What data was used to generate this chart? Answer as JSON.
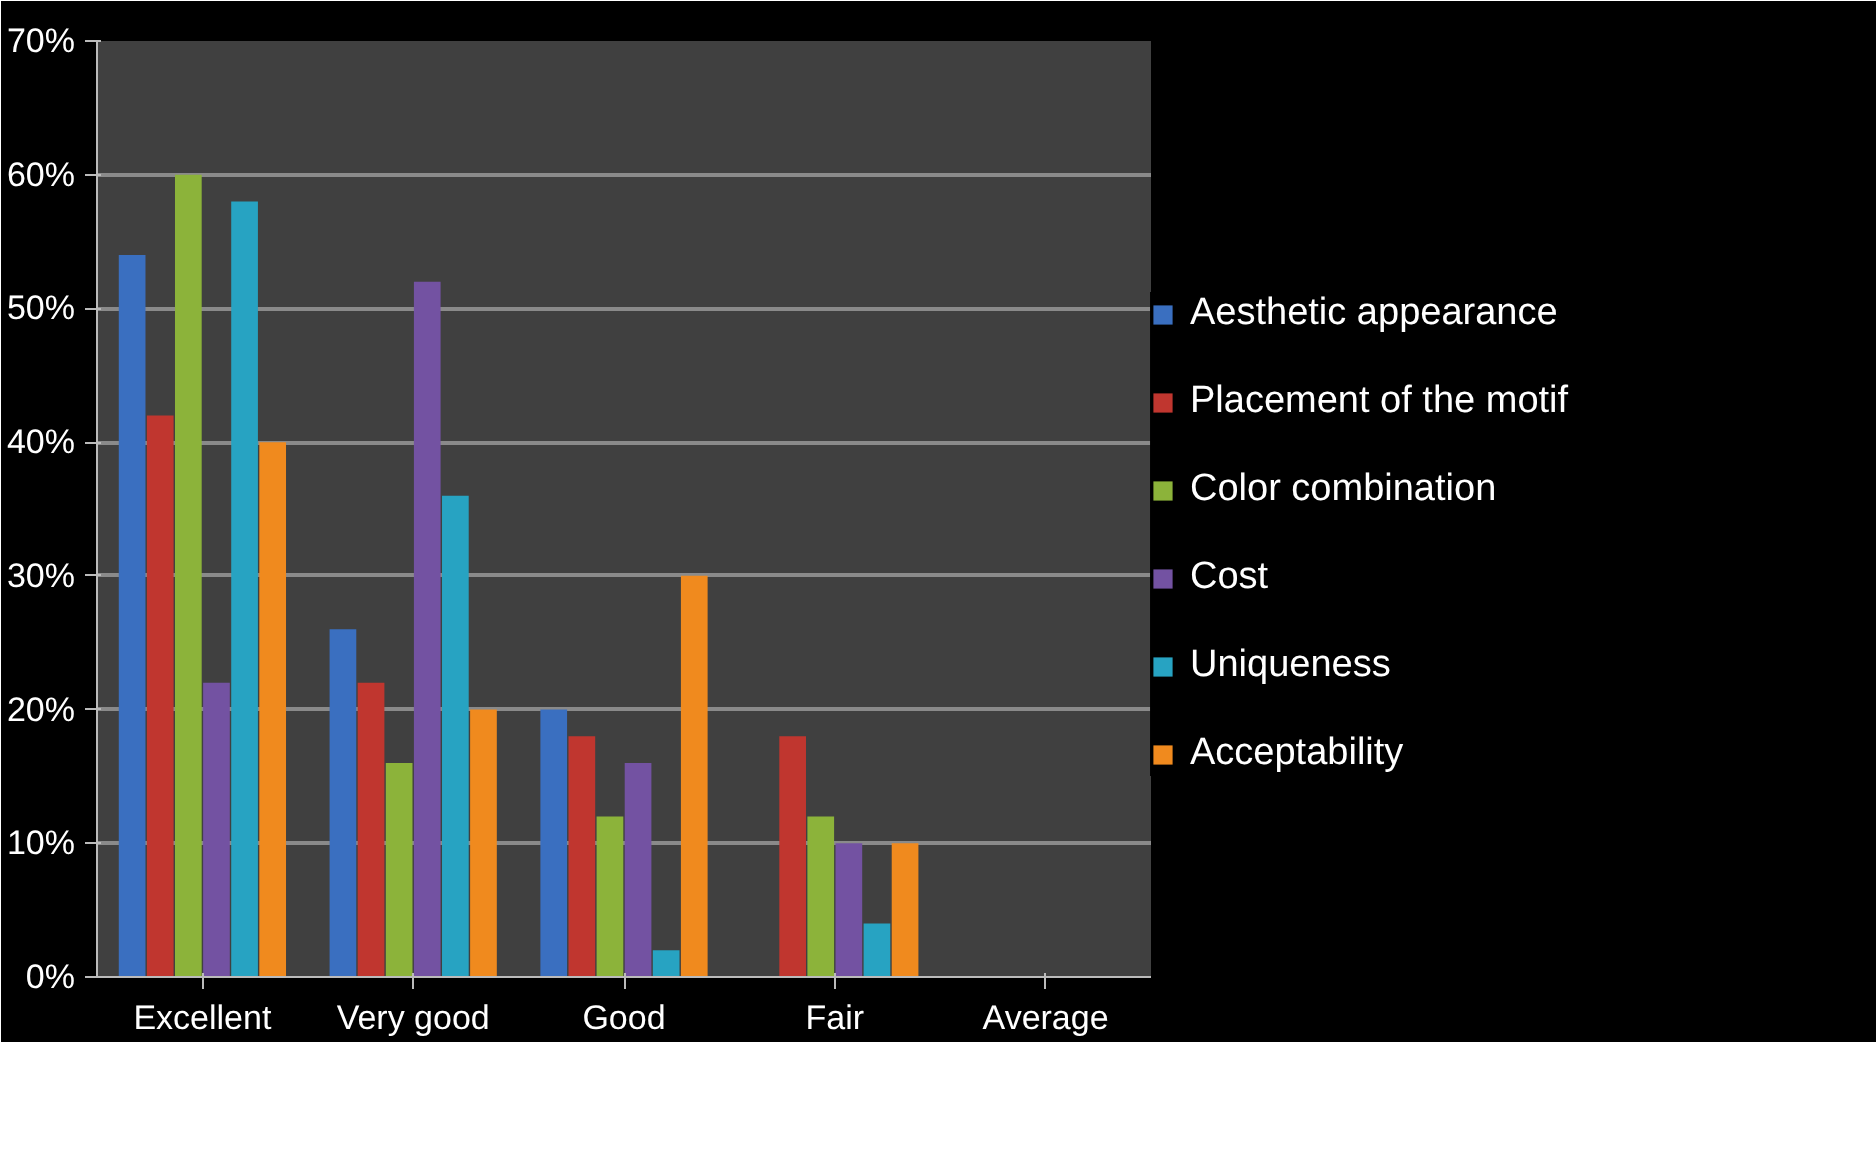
{
  "chart_data": {
    "type": "bar",
    "categories": [
      "Excellent",
      "Very good",
      "Good",
      "Fair",
      "Average"
    ],
    "series": [
      {
        "name": "Aesthetic appearance",
        "color": "#3a6fc0",
        "values": [
          54,
          26,
          20,
          0,
          0
        ]
      },
      {
        "name": "Placement of the motif",
        "color": "#c0362f",
        "values": [
          42,
          22,
          18,
          18,
          0
        ]
      },
      {
        "name": "Color combination",
        "color": "#8cb33a",
        "values": [
          60,
          16,
          12,
          12,
          0
        ]
      },
      {
        "name": "Cost",
        "color": "#7352a2",
        "values": [
          22,
          52,
          16,
          10,
          0
        ]
      },
      {
        "name": "Uniqueness",
        "color": "#27a3c2",
        "values": [
          58,
          36,
          2,
          4,
          0
        ]
      },
      {
        "name": "Acceptability",
        "color": "#f08a1e",
        "values": [
          40,
          20,
          30,
          10,
          0
        ]
      }
    ],
    "ylim": [
      0,
      70
    ],
    "yticks": [
      {
        "value": 0,
        "label": "0%"
      },
      {
        "value": 10,
        "label": "10%"
      },
      {
        "value": 20,
        "label": "20%"
      },
      {
        "value": 30,
        "label": "30%"
      },
      {
        "value": 40,
        "label": "40%"
      },
      {
        "value": 50,
        "label": "50%"
      },
      {
        "value": 60,
        "label": "60%"
      },
      {
        "value": 70,
        "label": "70%"
      }
    ],
    "grid": "y",
    "legend": "right"
  }
}
